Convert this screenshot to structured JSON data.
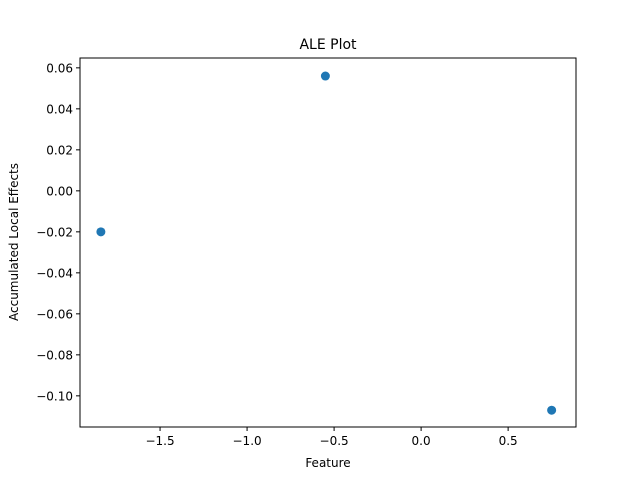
{
  "chart_data": {
    "type": "scatter",
    "title": "ALE Plot",
    "xlabel": "Feature",
    "ylabel": "Accumulated Local Effects",
    "xlim": [
      -1.96,
      0.89
    ],
    "ylim": [
      -0.1152,
      0.0648
    ],
    "xticks": [
      -1.5,
      -1.0,
      -0.5,
      0.0,
      0.5
    ],
    "xtick_labels": [
      "−1.5",
      "−1.0",
      "−0.5",
      "0.0",
      "0.5"
    ],
    "yticks": [
      -0.1,
      -0.08,
      -0.06,
      -0.04,
      -0.02,
      0.0,
      0.02,
      0.04,
      0.06
    ],
    "ytick_labels": [
      "−0.10",
      "−0.08",
      "−0.06",
      "−0.04",
      "−0.02",
      "0.00",
      "0.02",
      "0.04",
      "0.06"
    ],
    "points": [
      {
        "x": -1.84,
        "y": -0.02
      },
      {
        "x": -0.55,
        "y": 0.056
      },
      {
        "x": 0.75,
        "y": -0.107
      }
    ],
    "grid": false,
    "marker_color": "#1f77b4"
  }
}
